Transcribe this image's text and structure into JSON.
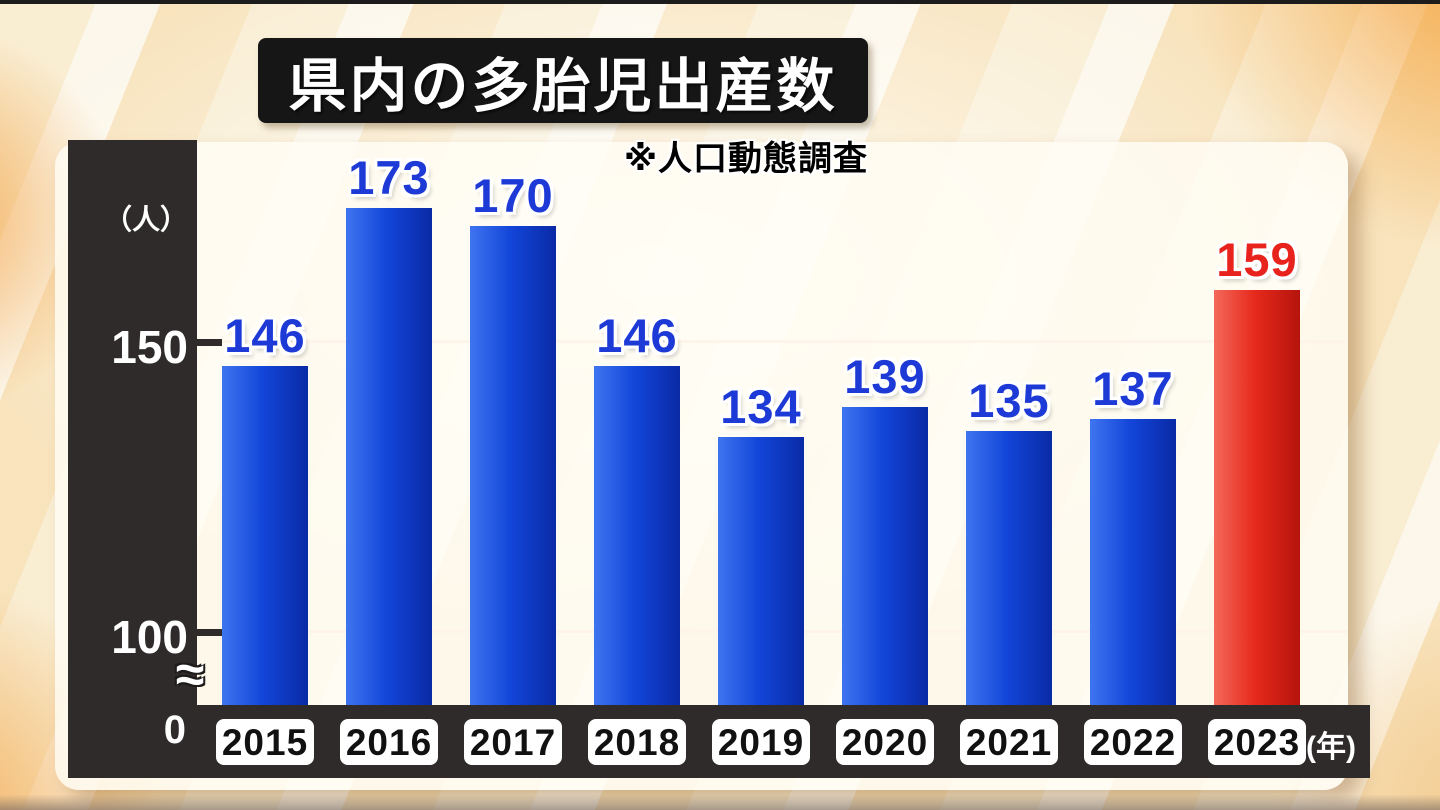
{
  "title": "県内の多胎児出産数",
  "source_note": "※人口動態調査",
  "y_axis": {
    "unit_label": "（人）",
    "tick_150": "150",
    "tick_100": "100",
    "tick_0": "0",
    "break_symbol": "≈"
  },
  "x_axis": {
    "unit_label": "(年)"
  },
  "chart_data": {
    "type": "bar",
    "title": "県内の多胎児出産数",
    "subtitle": "※人口動態調査",
    "categories": [
      "2015",
      "2016",
      "2017",
      "2018",
      "2019",
      "2020",
      "2021",
      "2022",
      "2023"
    ],
    "values": [
      146,
      173,
      170,
      146,
      134,
      139,
      135,
      137,
      159
    ],
    "xlabel": "年",
    "ylabel": "人",
    "yticks": [
      0,
      100,
      150
    ],
    "ylim": [
      0,
      180
    ],
    "axis_break_between": [
      0,
      100
    ],
    "grid": "horizontal-faint",
    "legend": "none",
    "highlight_index": 8
  },
  "colors": {
    "bar_blue_light": "#3f74f0",
    "bar_blue_mid": "#1245d8",
    "bar_blue_dark": "#0a2aa6",
    "bar_red_light": "#f4695a",
    "bar_red_mid": "#e6291c",
    "bar_red_dark": "#b5140c",
    "label_blue": "#1d39d6",
    "label_red": "#e8231d",
    "axis_panel": "#2f2b2b",
    "panel_white": "#fffcf4",
    "background_orange": "#f3a64a"
  }
}
